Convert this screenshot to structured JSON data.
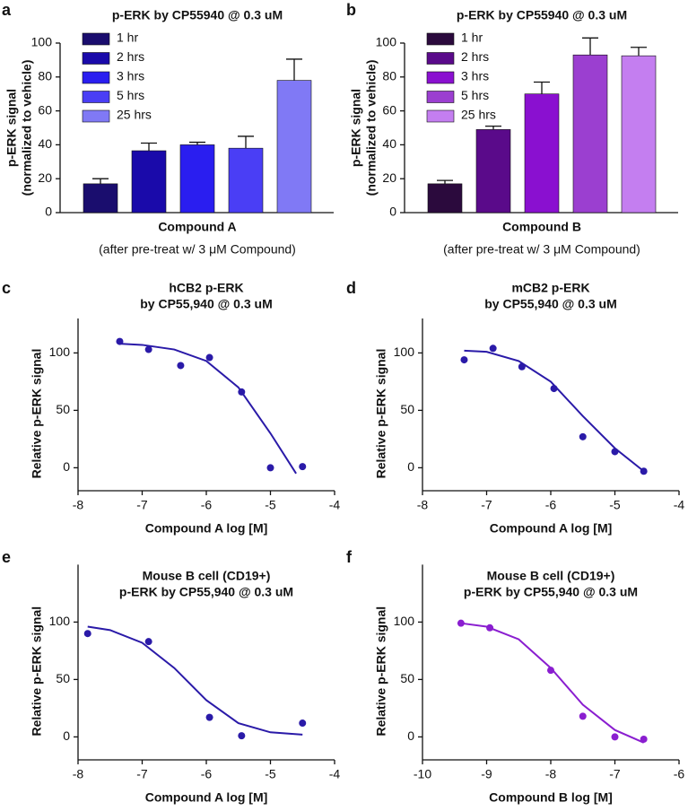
{
  "chart_data": [
    {
      "type": "bar",
      "panel": "a",
      "title": "p-ERK by CP55940 @ 0.3 uM",
      "ylabel": [
        "p-ERK signal",
        "(normalized to vehicle)"
      ],
      "xlabel": "Compound A",
      "note": "(after pre-treat w/ 3 μM Compound)",
      "ylim": [
        0,
        100
      ],
      "yticks": [
        0,
        20,
        40,
        60,
        80,
        100
      ],
      "legend": "top-left",
      "series": [
        {
          "name": "1 hr",
          "color": "#1a0d6e",
          "values": [
            17
          ],
          "errors": [
            3
          ]
        },
        {
          "name": "2 hrs",
          "color": "#1a0aaa",
          "values": [
            36.5
          ],
          "errors": [
            4.5
          ]
        },
        {
          "name": "3 hrs",
          "color": "#2a1ef0",
          "values": [
            40
          ],
          "errors": [
            1.5
          ]
        },
        {
          "name": "5 hrs",
          "color": "#4a3ef5",
          "values": [
            38
          ],
          "errors": [
            7
          ]
        },
        {
          "name": "25 hrs",
          "color": "#8079f5",
          "values": [
            78
          ],
          "errors": [
            12.5
          ]
        }
      ]
    },
    {
      "type": "bar",
      "panel": "b",
      "title": "p-ERK by CP55940 @ 0.3 uM",
      "ylabel": [
        "p-ERK signal",
        "(normalized to vehicle)"
      ],
      "xlabel": "Compound B",
      "note": "(after pre-treat w/ 3 μM Compound)",
      "ylim": [
        0,
        100
      ],
      "yticks": [
        0,
        20,
        40,
        60,
        80,
        100
      ],
      "legend": "top-left",
      "series": [
        {
          "name": "1 hr",
          "color": "#2b0a3d",
          "values": [
            17
          ],
          "errors": [
            2
          ]
        },
        {
          "name": "2 hrs",
          "color": "#5a0a8a",
          "values": [
            49
          ],
          "errors": [
            2
          ]
        },
        {
          "name": "3 hrs",
          "color": "#8a10d0",
          "values": [
            70
          ],
          "errors": [
            7
          ]
        },
        {
          "name": "5 hrs",
          "color": "#9b3fd0",
          "values": [
            93
          ],
          "errors": [
            10
          ]
        },
        {
          "name": "25 hrs",
          "color": "#c47ef0",
          "values": [
            92.5
          ],
          "errors": [
            5
          ]
        }
      ]
    },
    {
      "type": "dose-response",
      "panel": "c",
      "title": [
        "hCB2 p-ERK",
        "by CP55,940 @ 0.3 uM"
      ],
      "ylabel": "Relative p-ERK signal",
      "xlabel": "Compound A log [M]",
      "color": "#2a1aa8",
      "xlim": [
        -8,
        -4
      ],
      "xticks": [
        -8,
        -7,
        -6,
        -5,
        -4
      ],
      "ylim": [
        -20,
        130
      ],
      "yticks": [
        0,
        50,
        100
      ],
      "x": [
        -7.35,
        -6.9,
        -6.4,
        -5.95,
        -5.45,
        -5.0,
        -4.5
      ],
      "values": [
        110,
        103,
        89,
        96,
        66,
        0,
        1
      ],
      "fit": {
        "x": [
          -7.35,
          -7,
          -6.5,
          -6,
          -5.5,
          -5,
          -4.6
        ],
        "values": [
          108,
          107,
          103,
          93,
          70,
          30,
          -5
        ]
      }
    },
    {
      "type": "dose-response",
      "panel": "d",
      "title": [
        "mCB2 p-ERK",
        "by CP55,940 @ 0.3 uM"
      ],
      "ylabel": "Relative p-ERK signal",
      "xlabel": "Compound A log [M]",
      "color": "#2a1aa8",
      "xlim": [
        -8,
        -4
      ],
      "xticks": [
        -8,
        -7,
        -6,
        -5,
        -4
      ],
      "ylim": [
        -20,
        130
      ],
      "yticks": [
        0,
        50,
        100
      ],
      "x": [
        -7.35,
        -6.9,
        -6.45,
        -5.95,
        -5.5,
        -5.0,
        -4.55
      ],
      "values": [
        94,
        104,
        88,
        69,
        27,
        14,
        -3
      ],
      "fit": {
        "x": [
          -7.35,
          -7,
          -6.5,
          -6,
          -5.5,
          -5,
          -4.55
        ],
        "values": [
          102,
          101,
          93,
          75,
          45,
          17,
          -3
        ]
      }
    },
    {
      "type": "dose-response",
      "panel": "e",
      "title": [
        "Mouse B cell (CD19+)",
        "p-ERK by CP55,940 @ 0.3 uM"
      ],
      "ylabel": "Relative p-ERK signal",
      "xlabel": "Compound A log [M]",
      "color": "#2a1aa8",
      "xlim": [
        -8,
        -4
      ],
      "xticks": [
        -8,
        -7,
        -6,
        -5,
        -4
      ],
      "ylim": [
        -20,
        150
      ],
      "yticks": [
        0,
        50,
        100
      ],
      "x": [
        -7.85,
        -6.9,
        -5.95,
        -5.45,
        -4.5
      ],
      "values": [
        90,
        83,
        17,
        1,
        12
      ],
      "fit": {
        "x": [
          -7.85,
          -7.5,
          -7,
          -6.5,
          -6,
          -5.5,
          -5,
          -4.5
        ],
        "values": [
          96,
          93,
          82,
          60,
          32,
          12,
          4,
          2
        ]
      }
    },
    {
      "type": "dose-response",
      "panel": "f",
      "title": [
        "Mouse B cell (CD19+)",
        "p-ERK by CP55,940 @ 0.3 uM"
      ],
      "ylabel": "Relative p-ERK signal",
      "xlabel": "Compound B  log [M]",
      "color": "#8a1ed0",
      "xlim": [
        -10,
        -6
      ],
      "xticks": [
        -10,
        -9,
        -8,
        -7,
        -6
      ],
      "ylim": [
        -20,
        150
      ],
      "yticks": [
        0,
        50,
        100
      ],
      "x": [
        -9.4,
        -8.95,
        -8,
        -7.5,
        -7,
        -6.55
      ],
      "values": [
        99,
        95,
        58,
        18,
        0,
        -2
      ],
      "fit": {
        "x": [
          -9.4,
          -9,
          -8.5,
          -8,
          -7.5,
          -7,
          -6.55
        ],
        "values": [
          99,
          96,
          85,
          60,
          28,
          6,
          -5
        ]
      }
    }
  ]
}
